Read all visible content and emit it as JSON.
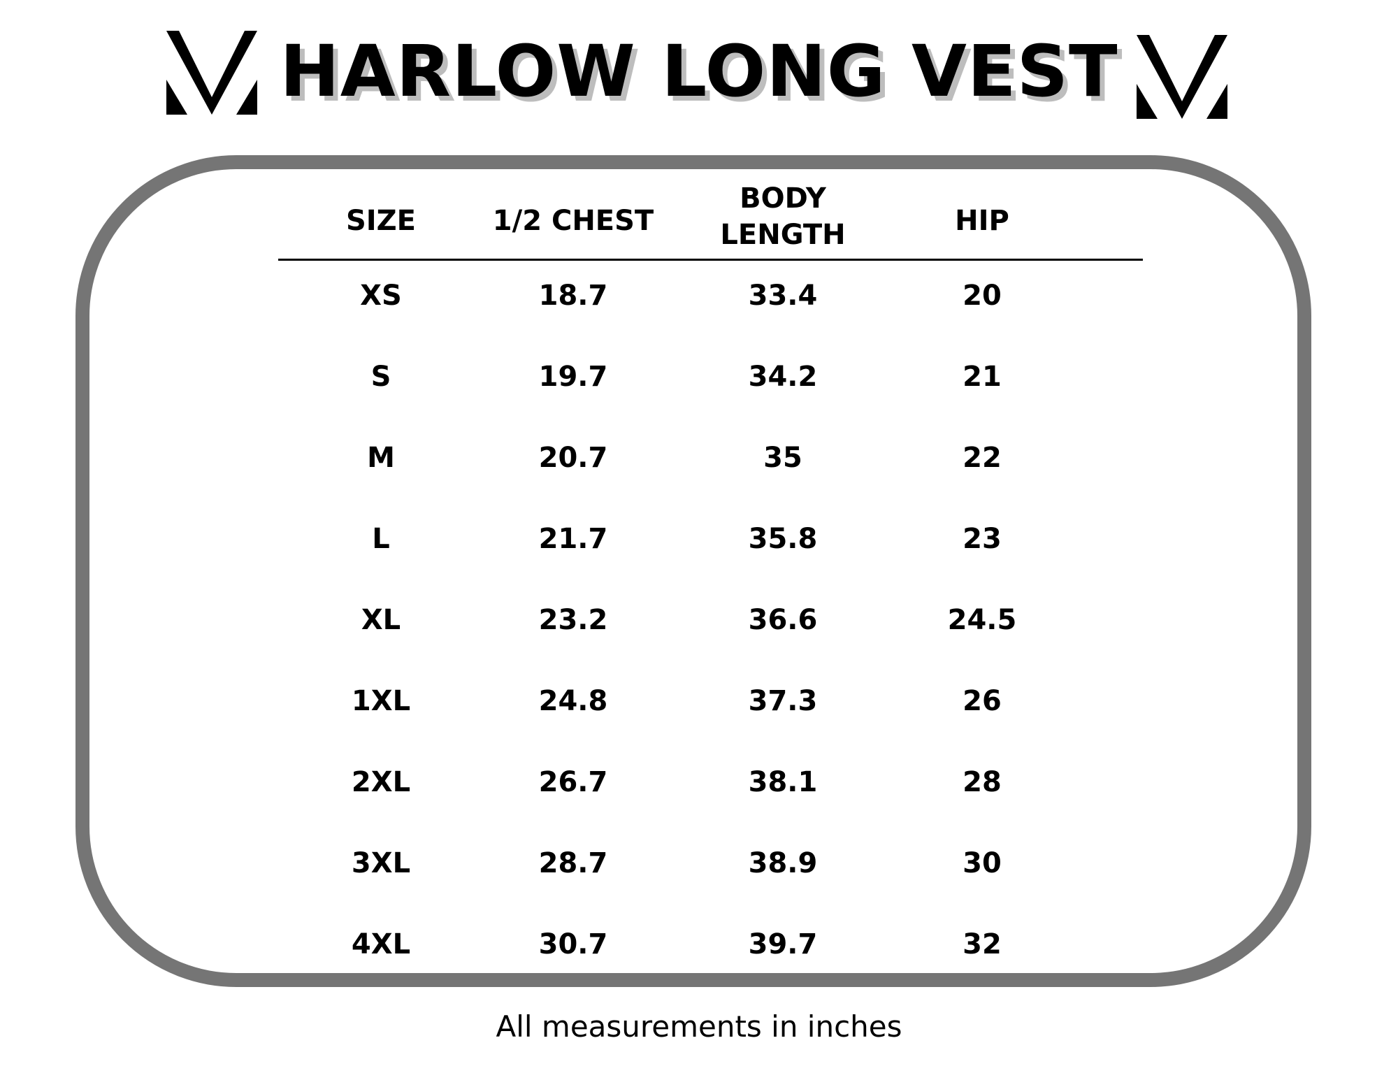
{
  "title": "HARLOW LONG VEST",
  "brand_icon": "mv-monogram-icon",
  "columns": [
    "SIZE",
    "1/2 CHEST",
    "BODY\nLENGTH",
    "HIP"
  ],
  "rows": [
    [
      "XS",
      "18.7",
      "33.4",
      "20"
    ],
    [
      "S",
      "19.7",
      "34.2",
      "21"
    ],
    [
      "M",
      "20.7",
      "35",
      "22"
    ],
    [
      "L",
      "21.7",
      "35.8",
      "23"
    ],
    [
      "XL",
      "23.2",
      "36.6",
      "24.5"
    ],
    [
      "1XL",
      "24.8",
      "37.3",
      "26"
    ],
    [
      "2XL",
      "26.7",
      "38.1",
      "28"
    ],
    [
      "3XL",
      "28.7",
      "38.9",
      "30"
    ],
    [
      "4XL",
      "30.7",
      "39.7",
      "32"
    ]
  ],
  "footnote": "All measurements in inches",
  "colors": {
    "frame": "#757575",
    "title_shadow": "#bdbdbd",
    "text": "#000000"
  }
}
